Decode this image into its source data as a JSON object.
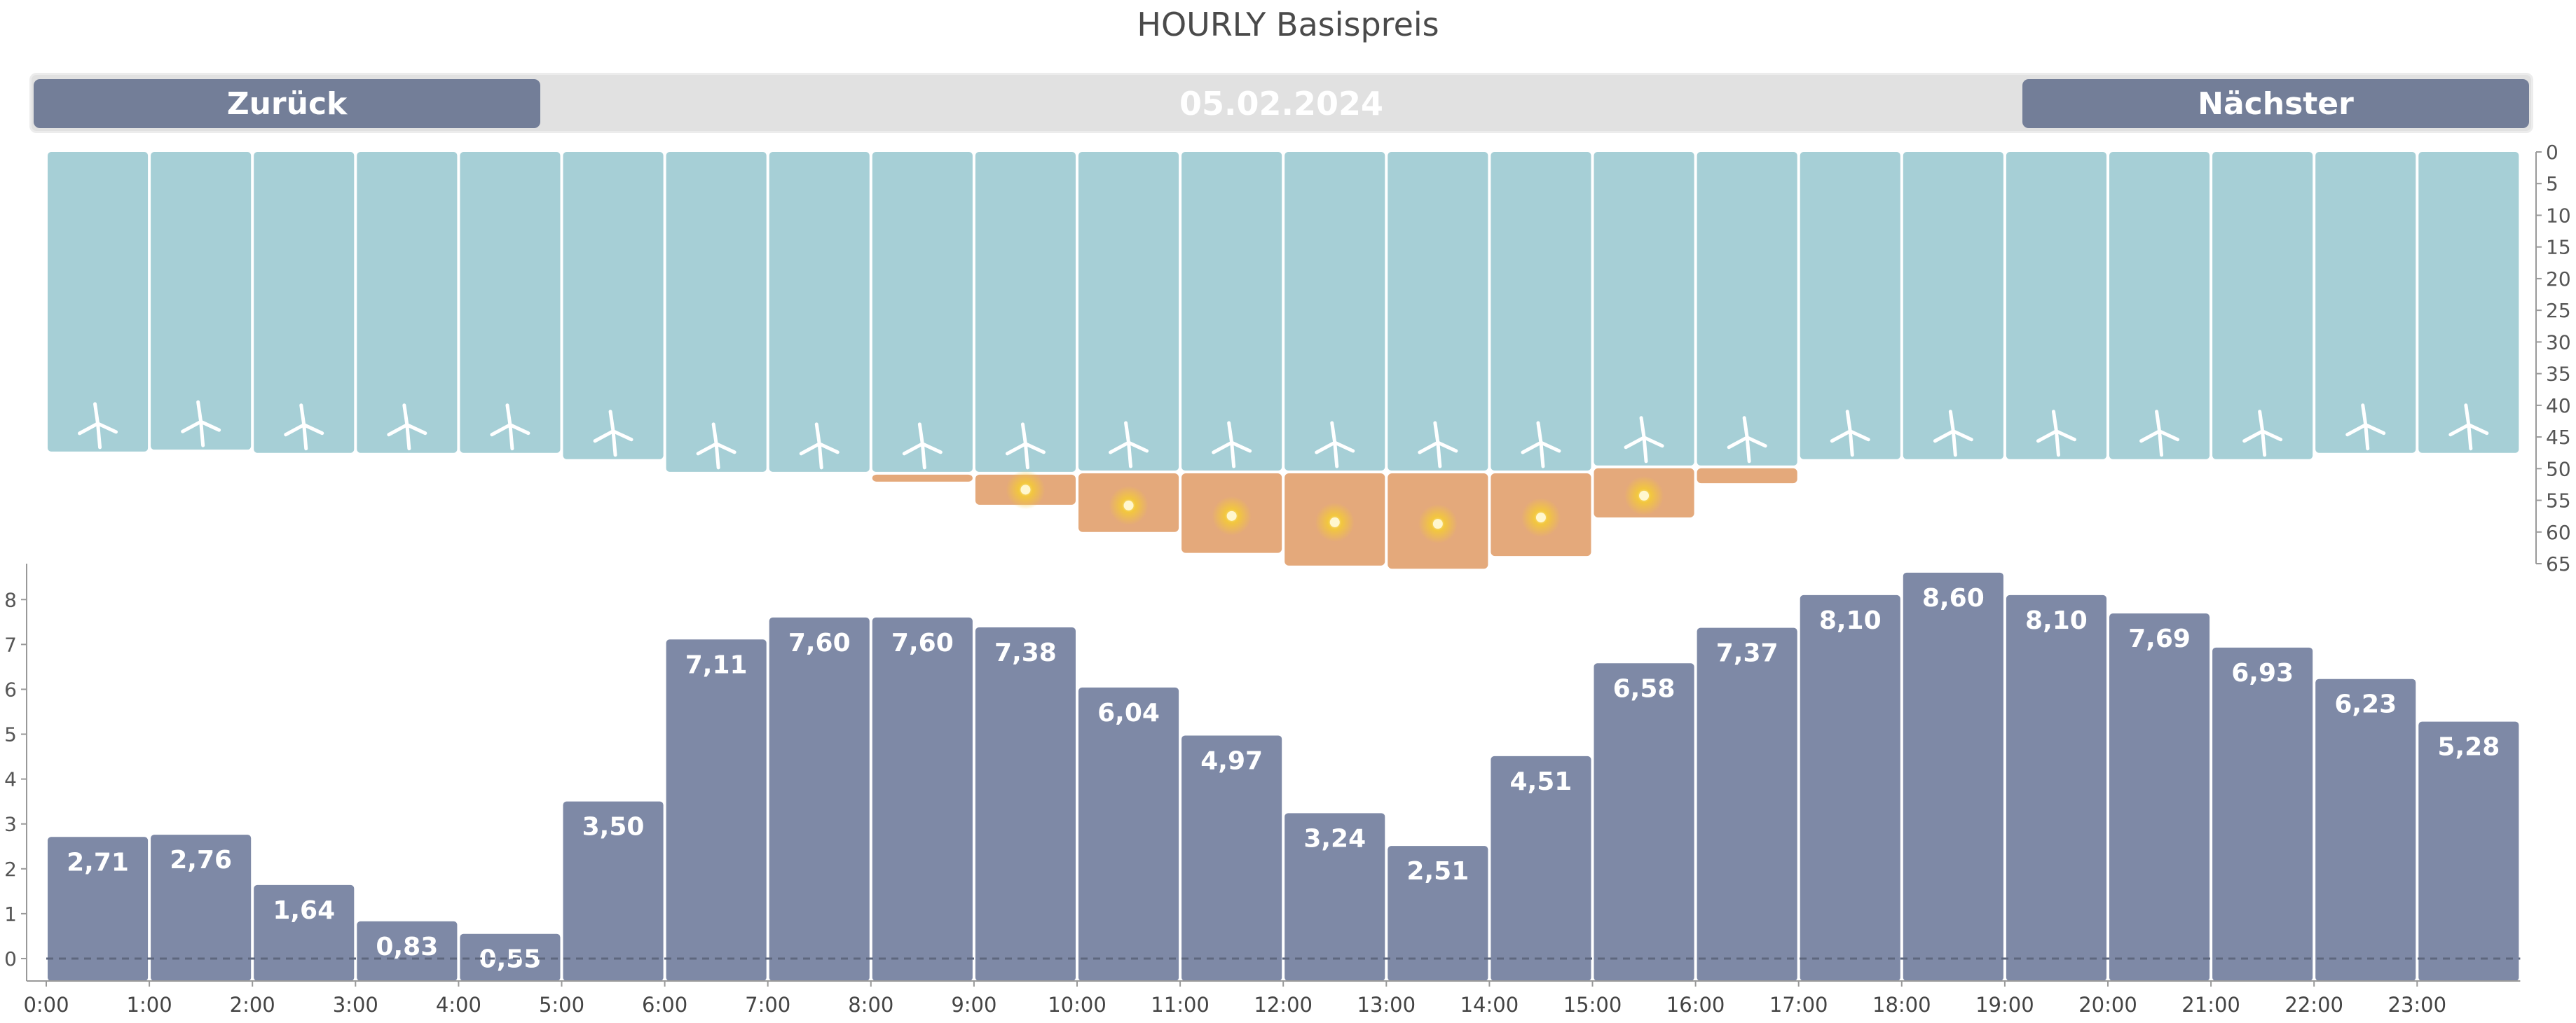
{
  "title": "HOURLY Basispreis",
  "navigation": {
    "prev_label": "Zurück",
    "next_label": "Nächster",
    "date": "05.02.2024"
  },
  "colors": {
    "wind": "#a6cfd6",
    "solar": "#e4a97b",
    "price": "#7e89a6",
    "turbine": "#ffffff",
    "sun": "#f3c83b",
    "nav_button": "#737e98",
    "nav_bg": "#e1e1e1"
  },
  "chart_data": [
    {
      "type": "bar",
      "name": "generation",
      "axis_side": "right",
      "ylim": [
        0,
        65
      ],
      "y_inverted": true,
      "y_ticks": [
        "0",
        "5",
        "10",
        "15",
        "20",
        "25",
        "30",
        "35",
        "40",
        "45",
        "50",
        "55",
        "60",
        "65"
      ],
      "categories": [
        "0:00",
        "1:00",
        "2:00",
        "3:00",
        "4:00",
        "5:00",
        "6:00",
        "7:00",
        "8:00",
        "9:00",
        "10:00",
        "11:00",
        "12:00",
        "13:00",
        "14:00",
        "15:00",
        "16:00",
        "17:00",
        "18:00",
        "19:00",
        "20:00",
        "21:00",
        "22:00",
        "23:00"
      ],
      "series": [
        {
          "icon": "wind-turbine-icon",
          "values": [
            47.3,
            47.0,
            47.5,
            47.5,
            47.5,
            48.5,
            50.5,
            50.5,
            50.5,
            50.5,
            50.3,
            50.3,
            50.3,
            50.3,
            50.3,
            49.5,
            49.5,
            48.5,
            48.5,
            48.5,
            48.5,
            48.5,
            47.5,
            47.5
          ]
        },
        {
          "icon": "sun-icon",
          "values": [
            0,
            0,
            0,
            0,
            0,
            0,
            0,
            0,
            1.3,
            5.2,
            9.7,
            13.0,
            15.0,
            15.5,
            13.5,
            8.2,
            2.8,
            0,
            0,
            0,
            0,
            0,
            0,
            0
          ]
        }
      ]
    },
    {
      "type": "bar",
      "name": "price",
      "ylim": [
        -0.5,
        8.8
      ],
      "y_ticks": [
        "0",
        "1",
        "2",
        "3",
        "4",
        "5",
        "6",
        "7",
        "8"
      ],
      "grid": false,
      "categories": [
        "0:00",
        "1:00",
        "2:00",
        "3:00",
        "4:00",
        "5:00",
        "6:00",
        "7:00",
        "8:00",
        "9:00",
        "10:00",
        "11:00",
        "12:00",
        "13:00",
        "14:00",
        "15:00",
        "16:00",
        "17:00",
        "18:00",
        "19:00",
        "20:00",
        "21:00",
        "22:00",
        "23:00"
      ],
      "values": [
        2.71,
        2.76,
        1.64,
        0.83,
        0.55,
        3.5,
        7.11,
        7.6,
        7.6,
        7.38,
        6.04,
        4.97,
        3.24,
        2.51,
        4.51,
        6.58,
        7.37,
        8.1,
        8.6,
        8.1,
        7.69,
        6.93,
        6.23,
        5.28
      ],
      "labels": [
        "2,71",
        "2,76",
        "1,64",
        "0,83",
        "0,55",
        "3,50",
        "7,11",
        "7,60",
        "7,60",
        "7,38",
        "6,04",
        "4,97",
        "3,24",
        "2,51",
        "4,51",
        "6,58",
        "7,37",
        "8,10",
        "8,60",
        "8,10",
        "7,69",
        "6,93",
        "6,23",
        "5,28"
      ]
    }
  ]
}
